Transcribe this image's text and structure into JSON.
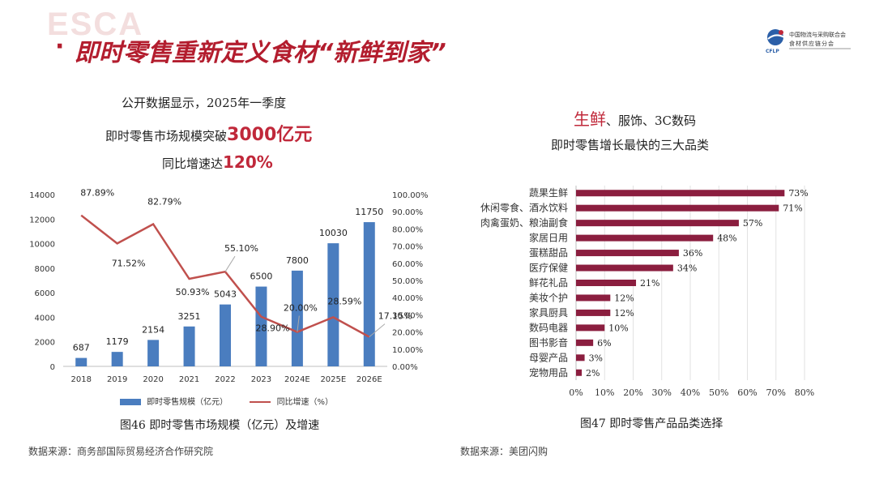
{
  "watermark": "ESCA",
  "slide": {
    "bullet": "·",
    "title": "即时零售重新定义食材“新鲜到家”"
  },
  "logo": {
    "line1": "中国物流与采购联合会",
    "line2": "食材供应链分会",
    "abbr": "CFLP"
  },
  "left_text": {
    "line1": "公开数据显示，2025年一季度",
    "line2_pre": "即时零售市场规模突破",
    "line2_hl": "3000亿元",
    "line3_pre": "同比增速达",
    "line3_hl": "120%"
  },
  "right_text": {
    "line1_hl": "生鲜",
    "line1_rest": "、服饰、3C数码",
    "line2": "即时零售增长最快的三大品类"
  },
  "captions": {
    "left": "图46  即时零售市场规模（亿元）及增速",
    "left_source": "数据来源：商务部国际贸易经济合作研究院",
    "right": "图47  即时零售产品品类选择",
    "right_source": "数据来源：美团闪购"
  },
  "colors": {
    "title": "#b31d2e",
    "highlight": "#c0283a",
    "bar_blue": "#4a7dbf",
    "line_red": "#c0504d",
    "bar_maroon": "#8b1e3f"
  },
  "chart_data": [
    {
      "type": "bar",
      "categories": [
        "2018",
        "2019",
        "2020",
        "2021",
        "2022",
        "2023",
        "2024E",
        "2025E",
        "2026E"
      ],
      "series": [
        {
          "name": "即时零售规模（亿元）",
          "type": "bar",
          "axis": "left",
          "values": [
            687,
            1179,
            2154,
            3251,
            5043,
            6500,
            7800,
            10030,
            11750
          ],
          "labels": [
            "687",
            "1179",
            "2154",
            "3251",
            "5043",
            "6500",
            "7800",
            "10030",
            "11750"
          ]
        },
        {
          "name": "同比增速（%）",
          "type": "line",
          "axis": "right",
          "values": [
            87.89,
            71.52,
            82.79,
            50.93,
            55.1,
            28.9,
            20.0,
            28.59,
            17.15
          ],
          "labels": [
            "87.89%",
            "71.52%",
            "82.79%",
            "50.93%",
            "55.10%",
            "28.90%",
            "20.00%",
            "28.59%",
            "17.15%"
          ]
        }
      ],
      "y_left": {
        "min": 0,
        "max": 14000,
        "ticks": [
          "0",
          "2000",
          "4000",
          "6000",
          "8000",
          "10000",
          "12000",
          "14000"
        ]
      },
      "y_right": {
        "min": 0,
        "max": 100,
        "ticks": [
          "0.00%",
          "10.00%",
          "20.00%",
          "30.00%",
          "40.00%",
          "50.00%",
          "60.00%",
          "70.00%",
          "80.00%",
          "90.00%",
          "100.00%"
        ]
      },
      "legend_position": "bottom"
    },
    {
      "type": "bar",
      "orientation": "horizontal",
      "categories": [
        "蔬果生鲜",
        "休闲零食、酒水饮料",
        "肉禽蛋奶、粮油副食",
        "家居日用",
        "蛋糕甜品",
        "医疗保健",
        "鲜花礼品",
        "美妆个护",
        "家具厨具",
        "数码电器",
        "图书影音",
        "母婴产品",
        "宠物用品"
      ],
      "values": [
        73,
        71,
        57,
        48,
        36,
        34,
        21,
        12,
        12,
        10,
        6,
        3,
        2
      ],
      "labels": [
        "73%",
        "71%",
        "57%",
        "48%",
        "36%",
        "34%",
        "21%",
        "12%",
        "12%",
        "10%",
        "6%",
        "3%",
        "2%"
      ],
      "x_axis": {
        "min": 0,
        "max": 80,
        "ticks": [
          "0%",
          "10%",
          "20%",
          "30%",
          "40%",
          "50%",
          "60%",
          "70%",
          "80%"
        ]
      },
      "grid": true
    }
  ]
}
